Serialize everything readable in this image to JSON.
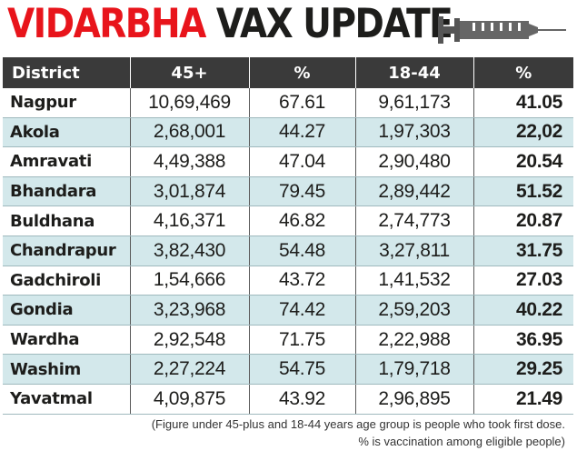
{
  "header": {
    "title_part1": "VIDARBHA",
    "title_part2": "VAX UPDATE",
    "icon": "syringe-icon",
    "colors": {
      "red": "#e8141b",
      "dark": "#1d1d1b",
      "header_bg": "#3a3a3a",
      "stripe": "#d3e8eb"
    }
  },
  "table": {
    "columns": [
      "District",
      "45+",
      "%",
      "18-44",
      "%"
    ],
    "rows": [
      {
        "district": "Nagpur",
        "age45": "10,69,469",
        "pct45": "67.61",
        "age18": "9,61,173",
        "pct18": "41.05"
      },
      {
        "district": "Akola",
        "age45": "2,68,001",
        "pct45": "44.27",
        "age18": "1,97,303",
        "pct18": "22,02"
      },
      {
        "district": "Amravati",
        "age45": "4,49,388",
        "pct45": "47.04",
        "age18": "2,90,480",
        "pct18": "20.54"
      },
      {
        "district": "Bhandara",
        "age45": "3,01,874",
        "pct45": "79.45",
        "age18": "2,89,442",
        "pct18": "51.52"
      },
      {
        "district": "Buldhana",
        "age45": "4,16,371",
        "pct45": "46.82",
        "age18": "2,74,773",
        "pct18": "20.87"
      },
      {
        "district": "Chandrapur",
        "age45": "3,82,430",
        "pct45": "54.48",
        "age18": "3,27,811",
        "pct18": "31.75"
      },
      {
        "district": "Gadchiroli",
        "age45": "1,54,666",
        "pct45": "43.72",
        "age18": "1,41,532",
        "pct18": "27.03"
      },
      {
        "district": "Gondia",
        "age45": "3,23,968",
        "pct45": "74.42",
        "age18": "2,59,203",
        "pct18": "40.22"
      },
      {
        "district": "Wardha",
        "age45": "2,92,548",
        "pct45": "71.75",
        "age18": "2,22,988",
        "pct18": "36.95"
      },
      {
        "district": "Washim",
        "age45": "2,27,224",
        "pct45": "54.75",
        "age18": "1,79,718",
        "pct18": "29.25"
      },
      {
        "district": "Yavatmal",
        "age45": "4,09,875",
        "pct45": "43.92",
        "age18": "2,96,895",
        "pct18": "21.49"
      }
    ]
  },
  "note": {
    "line1": "(Figure under 45-plus and 18-44 years age group is people who took first dose.",
    "line2": "% is vaccination among eligible people)"
  }
}
